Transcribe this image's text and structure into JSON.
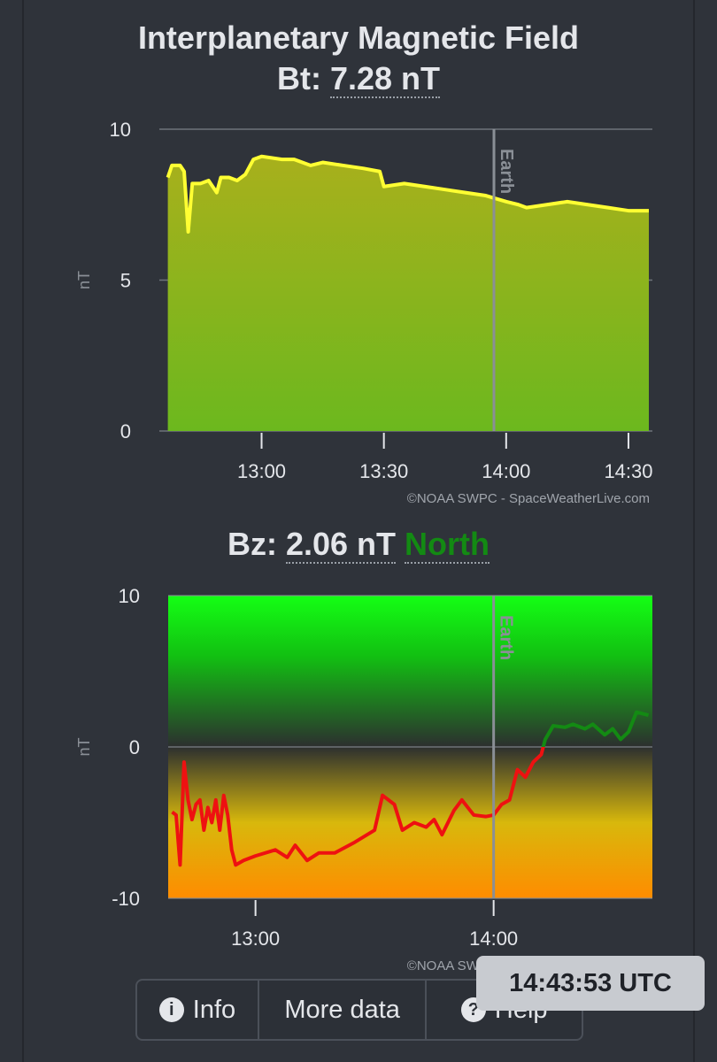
{
  "header": {
    "title": "Interplanetary Magnetic Field",
    "bt_label": "Bt:",
    "bt_value": "7.28 nT"
  },
  "bz_header": {
    "label": "Bz:",
    "value": "2.06 nT",
    "direction": "North"
  },
  "buttons": [
    "Info",
    "More data",
    "Help"
  ],
  "timestamp": "14:43:53 UTC",
  "chart_data": [
    {
      "type": "area",
      "y_label": "nT",
      "credit": "©NOAA SWPC - SpaceWeatherLive.com",
      "xlim": [
        "12:36",
        "14:35"
      ],
      "xticks": [
        "13:00",
        "13:30",
        "14:00",
        "14:30"
      ],
      "ylim": [
        0,
        10
      ],
      "yticks": [
        0,
        5,
        10
      ],
      "grid": true,
      "marker": {
        "x": "13:57",
        "label": "Earth"
      },
      "x": [
        "12:37",
        "12:38",
        "12:40",
        "12:41",
        "12:42",
        "12:43",
        "12:45",
        "12:47",
        "12:49",
        "12:50",
        "12:52",
        "12:54",
        "12:56",
        "12:58",
        "13:00",
        "13:05",
        "13:08",
        "13:12",
        "13:15",
        "13:20",
        "13:25",
        "13:29",
        "13:30",
        "13:35",
        "13:40",
        "13:45",
        "13:50",
        "13:55",
        "14:00",
        "14:03",
        "14:05",
        "14:10",
        "14:15",
        "14:20",
        "14:25",
        "14:30",
        "14:35"
      ],
      "series": [
        {
          "color": "#ffff33",
          "values": [
            8.4,
            8.8,
            8.8,
            8.6,
            6.6,
            8.2,
            8.2,
            8.3,
            7.9,
            8.4,
            8.4,
            8.3,
            8.5,
            9.0,
            9.1,
            9.0,
            9.0,
            8.8,
            8.9,
            8.8,
            8.7,
            8.6,
            8.1,
            8.2,
            8.1,
            8.0,
            7.9,
            7.8,
            7.6,
            7.5,
            7.4,
            7.5,
            7.6,
            7.5,
            7.4,
            7.3,
            7.3
          ]
        }
      ]
    },
    {
      "type": "line",
      "y_label": "nT",
      "credit": "©NOAA SWPC - SpaceWeatherLive.com",
      "xlim": [
        "12:38",
        "14:40"
      ],
      "xticks": [
        "13:00",
        "14:00"
      ],
      "ylim": [
        -10,
        10
      ],
      "yticks": [
        -10,
        0,
        10
      ],
      "grid": true,
      "marker": {
        "x": "14:00",
        "label": "Earth"
      },
      "colors": {
        "positive": "#138a13",
        "negative": "#ee1111"
      },
      "x": [
        "12:39",
        "12:40",
        "12:41",
        "12:42",
        "12:43",
        "12:44",
        "12:45",
        "12:46",
        "12:47",
        "12:48",
        "12:49",
        "12:50",
        "12:51",
        "12:52",
        "12:53",
        "12:54",
        "12:55",
        "12:57",
        "13:00",
        "13:05",
        "13:08",
        "13:10",
        "13:13",
        "13:16",
        "13:20",
        "13:25",
        "13:30",
        "13:32",
        "13:35",
        "13:37",
        "13:40",
        "13:43",
        "13:45",
        "13:47",
        "13:50",
        "13:52",
        "13:55",
        "13:58",
        "14:00",
        "14:02",
        "14:04",
        "14:06",
        "14:08",
        "14:10",
        "14:12",
        "14:13",
        "14:15",
        "14:18",
        "14:20",
        "14:23",
        "14:25",
        "14:28",
        "14:30",
        "14:32",
        "14:34",
        "14:36",
        "14:39"
      ],
      "series": [
        {
          "values": [
            -4.3,
            -4.5,
            -7.8,
            -1.0,
            -3.5,
            -4.8,
            -3.8,
            -3.5,
            -5.5,
            -4.0,
            -5.0,
            -3.5,
            -5.5,
            -3.2,
            -4.5,
            -6.8,
            -7.8,
            -7.5,
            -7.2,
            -6.8,
            -7.3,
            -6.5,
            -7.5,
            -7.0,
            -7.0,
            -6.3,
            -5.5,
            -3.2,
            -3.8,
            -5.5,
            -5.0,
            -5.3,
            -4.8,
            -5.8,
            -4.2,
            -3.5,
            -4.5,
            -4.6,
            -4.5,
            -3.8,
            -3.5,
            -1.5,
            -2.0,
            -1.0,
            -0.5,
            0.5,
            1.4,
            1.3,
            1.5,
            1.2,
            1.5,
            0.8,
            1.2,
            0.5,
            1.0,
            2.3,
            2.1
          ]
        }
      ]
    }
  ]
}
